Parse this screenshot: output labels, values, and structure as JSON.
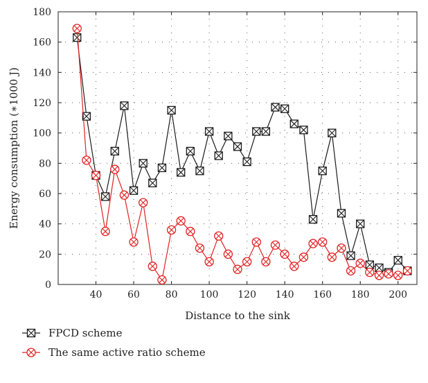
{
  "chart_data": {
    "type": "line",
    "xlabel": "Distance to the sink",
    "ylabel": "Energy consumption (∗1000 J)",
    "xlim": [
      20,
      210
    ],
    "ylim": [
      0,
      180
    ],
    "x_ticks": [
      40,
      60,
      80,
      100,
      120,
      140,
      160,
      180,
      200
    ],
    "y_ticks": [
      0,
      20,
      40,
      60,
      80,
      100,
      120,
      140,
      160,
      180
    ],
    "grid": true,
    "legend_position": "below-left",
    "x": [
      30,
      35,
      40,
      45,
      50,
      55,
      60,
      65,
      70,
      75,
      80,
      85,
      90,
      95,
      100,
      105,
      110,
      115,
      120,
      125,
      130,
      135,
      140,
      145,
      150,
      155,
      160,
      165,
      170,
      175,
      180,
      185,
      190,
      195,
      200,
      205
    ],
    "series": [
      {
        "name": "FPCD scheme",
        "color": "#1a1a1a",
        "values": [
          163,
          111,
          72,
          58,
          88,
          118,
          62,
          80,
          67,
          77,
          115,
          74,
          88,
          75,
          101,
          85,
          98,
          91,
          81,
          101,
          101,
          117,
          116,
          106,
          102,
          43,
          75,
          100,
          47,
          19,
          40,
          13,
          11,
          8,
          16,
          9
        ]
      },
      {
        "name": "The same active ratio scheme",
        "color": "#e02020",
        "values": [
          169,
          82,
          72,
          35,
          76,
          59,
          28,
          54,
          12,
          3,
          36,
          42,
          35,
          24,
          15,
          32,
          20,
          10,
          15,
          28,
          15,
          26,
          20,
          12,
          18,
          27,
          28,
          18,
          24,
          9,
          14,
          8,
          6,
          7,
          6,
          9
        ]
      }
    ]
  }
}
